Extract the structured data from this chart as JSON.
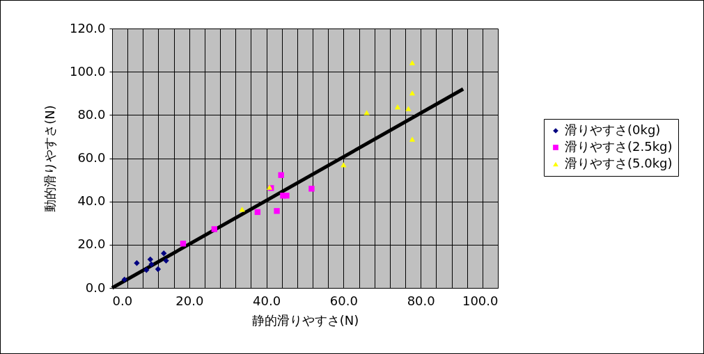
{
  "chart_data": {
    "type": "scatter",
    "xlabel": "静的滑りやすさ(N)",
    "ylabel": "動的滑りやすさ(N)",
    "xlim": [
      0,
      100
    ],
    "ylim": [
      0,
      120
    ],
    "xticks": [
      {
        "value": 0,
        "label": "0.0"
      },
      {
        "value": 4,
        "label": null
      },
      {
        "value": 8,
        "label": null
      },
      {
        "value": 12,
        "label": null
      },
      {
        "value": 16,
        "label": null
      },
      {
        "value": 20,
        "label": "20.0"
      },
      {
        "value": 24,
        "label": null
      },
      {
        "value": 28,
        "label": null
      },
      {
        "value": 32,
        "label": null
      },
      {
        "value": 36,
        "label": null
      },
      {
        "value": 40,
        "label": "40.0"
      },
      {
        "value": 44,
        "label": null
      },
      {
        "value": 48,
        "label": null
      },
      {
        "value": 52,
        "label": null
      },
      {
        "value": 56,
        "label": null
      },
      {
        "value": 60,
        "label": "60.0"
      },
      {
        "value": 64,
        "label": null
      },
      {
        "value": 68,
        "label": null
      },
      {
        "value": 72,
        "label": null
      },
      {
        "value": 76,
        "label": null
      },
      {
        "value": 80,
        "label": "80.0"
      },
      {
        "value": 84,
        "label": null
      },
      {
        "value": 88,
        "label": null
      },
      {
        "value": 92,
        "label": null
      },
      {
        "value": 96,
        "label": null
      },
      {
        "value": 100,
        "label": "100.0"
      }
    ],
    "yticks": [
      {
        "value": 0,
        "label": "0.0"
      },
      {
        "value": 20,
        "label": "20.0"
      },
      {
        "value": 40,
        "label": "40.0"
      },
      {
        "value": 60,
        "label": "60.0"
      },
      {
        "value": 80,
        "label": "80.0"
      },
      {
        "value": 100,
        "label": "100.0"
      },
      {
        "value": 120,
        "label": "120.0"
      }
    ],
    "grid": true,
    "legend": "right",
    "series": [
      {
        "name": "滑りやすさ(0kg)",
        "color": "#000080",
        "marker": "diamond",
        "x": [
          3.2,
          6.4,
          9.9,
          10.2,
          8.9,
          11.9,
          13.4,
          14.0
        ],
        "values": [
          3.9,
          11.5,
          13.2,
          10.9,
          8.3,
          8.7,
          16.0,
          12.6
        ]
      },
      {
        "name": "滑りやすさ(2.5kg)",
        "color": "#ff00ff",
        "marker": "square",
        "x": [
          18.4,
          26.5,
          37.7,
          42.7,
          41.2,
          43.8,
          44.3,
          45.2,
          51.7
        ],
        "values": [
          20.5,
          27.2,
          35.1,
          35.6,
          46.2,
          52.2,
          42.7,
          42.7,
          45.9
        ]
      },
      {
        "name": "滑りやすさ(5.0kg)",
        "color": "#ffff00",
        "marker": "triangle",
        "x": [
          33.7,
          40.8,
          60.0,
          66.0,
          74.0,
          76.8,
          77.8,
          77.8,
          77.8
        ],
        "values": [
          36.4,
          46.6,
          57.0,
          81.1,
          83.8,
          83.0,
          90.2,
          104.2,
          68.8
        ]
      },
      {
        "type": "line",
        "color": "#000000",
        "marker": "none",
        "x": [
          0,
          91.0
        ],
        "values": [
          0,
          92.0
        ]
      }
    ]
  }
}
